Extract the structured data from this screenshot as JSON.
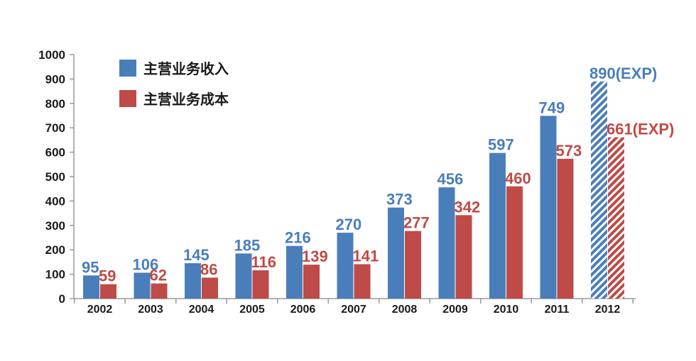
{
  "chart_data": {
    "type": "bar",
    "title": "",
    "xlabel": "",
    "ylabel": "",
    "ylim": [
      0,
      1000
    ],
    "yticks": [
      0,
      100,
      200,
      300,
      400,
      500,
      600,
      700,
      800,
      900,
      1000
    ],
    "categories": [
      "2002",
      "2003",
      "2004",
      "2005",
      "2006",
      "2007",
      "2008",
      "2009",
      "2010",
      "2011",
      "2012"
    ],
    "legend_position": "top-left",
    "grid": false,
    "series": [
      {
        "name": "主营业务收入",
        "color": "#4a7ebb",
        "values": [
          95,
          106,
          145,
          185,
          216,
          270,
          373,
          456,
          597,
          749,
          890
        ],
        "labels": [
          "95",
          "106",
          "145",
          "185",
          "216",
          "270",
          "373",
          "456",
          "597",
          "749",
          "890(EXP)"
        ],
        "hatched": [
          false,
          false,
          false,
          false,
          false,
          false,
          false,
          false,
          false,
          false,
          true
        ]
      },
      {
        "name": "主营业务成本",
        "color": "#be4b48",
        "values": [
          59,
          62,
          86,
          116,
          139,
          141,
          277,
          342,
          460,
          573,
          661
        ],
        "labels": [
          "59",
          "62",
          "86",
          "116",
          "139",
          "141",
          "277",
          "342",
          "460",
          "573",
          "661(EXP)"
        ],
        "hatched": [
          false,
          false,
          false,
          false,
          false,
          false,
          false,
          false,
          false,
          false,
          true
        ]
      }
    ]
  }
}
